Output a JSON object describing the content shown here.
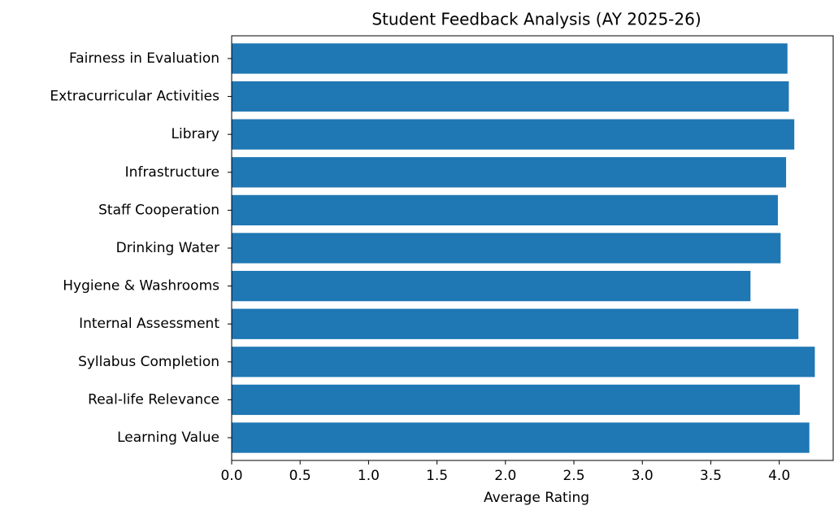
{
  "chart_data": {
    "type": "barh",
    "title": "Student Feedback Analysis (AY 2025-26)",
    "x_label": "Average Rating",
    "categories": [
      "Learning Value",
      "Real-life Relevance",
      "Syllabus Completion",
      "Internal Assessment",
      "Hygiene & Washrooms",
      "Drinking Water",
      "Staff Cooperation",
      "Infrastructure",
      "Library",
      "Extracurricular Activities",
      "Fairness in Evaluation"
    ],
    "values": [
      4.22,
      4.15,
      4.26,
      4.14,
      3.79,
      4.01,
      3.99,
      4.05,
      4.11,
      4.07,
      4.06
    ],
    "color": "#1f77b4",
    "xlim": [
      0,
      4.4
    ],
    "xticks": [
      {
        "value": 0,
        "label": "0.0"
      },
      0.5,
      {
        "value": 1,
        "label": "1.0"
      },
      1.5,
      {
        "value": 2,
        "label": "2.0"
      },
      2.5,
      {
        "value": 3,
        "label": "3.0"
      },
      3.5,
      {
        "value": 4,
        "label": "4.0"
      }
    ],
    "grid": false
  }
}
